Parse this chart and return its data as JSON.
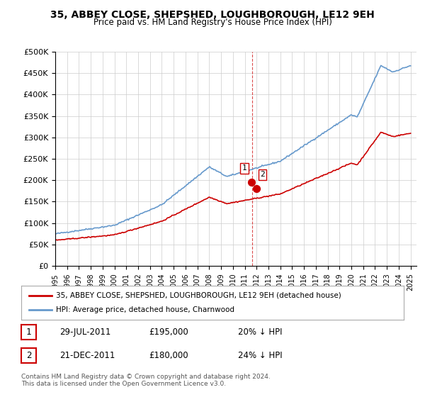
{
  "title": "35, ABBEY CLOSE, SHEPSHED, LOUGHBOROUGH, LE12 9EH",
  "subtitle": "Price paid vs. HM Land Registry's House Price Index (HPI)",
  "ylabel_ticks": [
    "£0",
    "£50K",
    "£100K",
    "£150K",
    "£200K",
    "£250K",
    "£300K",
    "£350K",
    "£400K",
    "£450K",
    "£500K"
  ],
  "ytick_values": [
    0,
    50000,
    100000,
    150000,
    200000,
    250000,
    300000,
    350000,
    400000,
    450000,
    500000
  ],
  "ylim": [
    0,
    500000
  ],
  "xlim_start": 1995.0,
  "xlim_end": 2025.5,
  "hpi_color": "#6699cc",
  "sale_color": "#cc0000",
  "vline_color": "#cc0000",
  "sale_marker_color": "#cc0000",
  "legend_label_red": "35, ABBEY CLOSE, SHEPSHED, LOUGHBOROUGH, LE12 9EH (detached house)",
  "legend_label_blue": "HPI: Average price, detached house, Charnwood",
  "sale1_date": "29-JUL-2011",
  "sale1_price": "£195,000",
  "sale1_hpi": "20% ↓ HPI",
  "sale1_year": 2011.57,
  "sale1_value": 195000,
  "sale2_date": "21-DEC-2011",
  "sale2_price": "£180,000",
  "sale2_hpi": "24% ↓ HPI",
  "sale2_year": 2011.97,
  "sale2_value": 180000,
  "footnote": "Contains HM Land Registry data © Crown copyright and database right 2024.\nThis data is licensed under the Open Government Licence v3.0.",
  "background_color": "#ffffff",
  "grid_color": "#cccccc"
}
